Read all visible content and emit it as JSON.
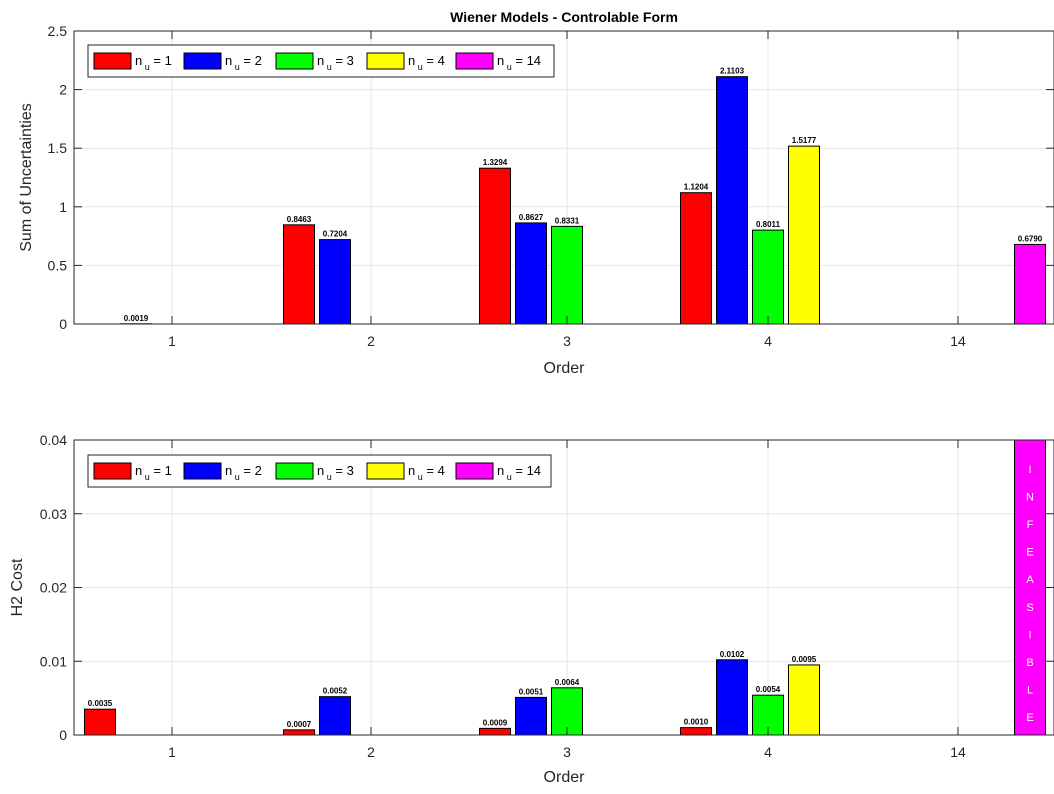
{
  "chart_data": [
    {
      "type": "bar",
      "title": "Wiener Models - Controlable Form",
      "xlabel": "Order",
      "ylabel": "Sum of Uncertainties",
      "categories": [
        "1",
        "2",
        "3",
        "4",
        "14"
      ],
      "ylim": [
        0,
        2.5
      ],
      "yticks": [
        "0",
        "0.5",
        "1",
        "1.5",
        "2",
        "2.5"
      ],
      "grid": true,
      "legend_position": "top-left",
      "series": [
        {
          "name": "n_u = 1",
          "name_main": "n",
          "name_sub": "u",
          "name_rest": " = 1",
          "color": "#ff0000",
          "values": [
            0,
            0.8463,
            1.3294,
            1.1204,
            0
          ],
          "labels": [
            "",
            "0.8463",
            "1.3294",
            "1.1204",
            ""
          ]
        },
        {
          "name": "n_u = 2",
          "name_main": "n",
          "name_sub": "u",
          "name_rest": " = 2",
          "color": "#0000ff",
          "values": [
            0.0019,
            0.7204,
            0.8627,
            2.1103,
            0
          ],
          "labels": [
            "0.0019",
            "0.7204",
            "0.8627",
            "2.1103",
            ""
          ]
        },
        {
          "name": "n_u = 3",
          "name_main": "n",
          "name_sub": "u",
          "name_rest": " = 3",
          "color": "#00ff00",
          "values": [
            0,
            0,
            0.8331,
            0.8011,
            0
          ],
          "labels": [
            "",
            "",
            "0.8331",
            "0.8011",
            ""
          ]
        },
        {
          "name": "n_u = 4",
          "name_main": "n",
          "name_sub": "u",
          "name_rest": " = 4",
          "color": "#ffff00",
          "values": [
            0,
            0,
            0,
            1.5177,
            0
          ],
          "labels": [
            "",
            "",
            "",
            "1.5177",
            ""
          ]
        },
        {
          "name": "n_u = 14",
          "name_main": "n",
          "name_sub": "u",
          "name_rest": " = 14",
          "color": "#ff00ff",
          "values": [
            0,
            0,
            0,
            0,
            0.679
          ],
          "labels": [
            "",
            "",
            "",
            "",
            "0.6790"
          ]
        }
      ],
      "annotations": []
    },
    {
      "type": "bar",
      "title": "",
      "xlabel": "Order",
      "ylabel": "H2 Cost",
      "categories": [
        "1",
        "2",
        "3",
        "4",
        "14"
      ],
      "ylim": [
        0,
        0.04
      ],
      "yticks": [
        "0",
        "0.01",
        "0.02",
        "0.03",
        "0.04"
      ],
      "grid": true,
      "legend_position": "top-left",
      "series": [
        {
          "name": "n_u = 1",
          "name_main": "n",
          "name_sub": "u",
          "name_rest": " = 1",
          "color": "#ff0000",
          "values": [
            0.0035,
            0.0007,
            0.0009,
            0.001,
            0
          ],
          "labels": [
            "0.0035",
            "0.0007",
            "0.0009",
            "0.0010",
            ""
          ]
        },
        {
          "name": "n_u = 2",
          "name_main": "n",
          "name_sub": "u",
          "name_rest": " = 2",
          "color": "#0000ff",
          "values": [
            0,
            0.0052,
            0.0051,
            0.0102,
            0
          ],
          "labels": [
            "",
            "0.0052",
            "0.0051",
            "0.0102",
            ""
          ]
        },
        {
          "name": "n_u = 3",
          "name_main": "n",
          "name_sub": "u",
          "name_rest": " = 3",
          "color": "#00ff00",
          "values": [
            0,
            0,
            0.0064,
            0.0054,
            0
          ],
          "labels": [
            "",
            "",
            "0.0064",
            "0.0054",
            ""
          ]
        },
        {
          "name": "n_u = 4",
          "name_main": "n",
          "name_sub": "u",
          "name_rest": " = 4",
          "color": "#ffff00",
          "values": [
            0,
            0,
            0,
            0.0095,
            0
          ],
          "labels": [
            "",
            "",
            "",
            "0.0095",
            ""
          ]
        },
        {
          "name": "n_u = 14",
          "name_main": "n",
          "name_sub": "u",
          "name_rest": " = 14",
          "color": "#ff00ff",
          "values": [
            0,
            0,
            0,
            0,
            0.04
          ],
          "labels": [
            "",
            "",
            "",
            "",
            ""
          ]
        }
      ],
      "annotations": [
        {
          "category": "14",
          "series": "n_u = 14",
          "letters": [
            "I",
            "N",
            "F",
            "E",
            "A",
            "S",
            "I",
            "B",
            "L",
            "E"
          ]
        }
      ]
    }
  ]
}
